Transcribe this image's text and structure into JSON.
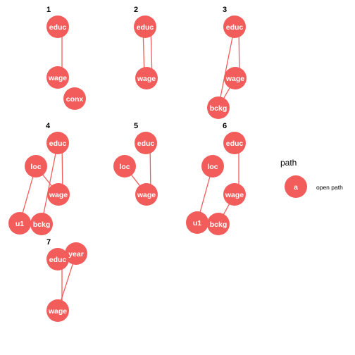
{
  "colors": {
    "node": "#f25d5b",
    "edge": "#f25d5b",
    "text": "#ffffff"
  },
  "panels": [
    {
      "label": "1",
      "nodes": [
        {
          "id": "educ",
          "label": "educ"
        },
        {
          "id": "wage",
          "label": "wage"
        },
        {
          "id": "conx",
          "label": "conx"
        }
      ],
      "edges": [
        {
          "from": "educ",
          "to": "wage",
          "directed": true
        }
      ]
    },
    {
      "label": "2",
      "nodes": [
        {
          "id": "educ",
          "label": "educ"
        },
        {
          "id": "wage",
          "label": "wage"
        }
      ],
      "edges": [
        {
          "from": "educ",
          "to": "wage",
          "directed": true
        },
        {
          "from": "educ",
          "to": "wage",
          "directed": true
        }
      ]
    },
    {
      "label": "3",
      "nodes": [
        {
          "id": "educ",
          "label": "educ"
        },
        {
          "id": "wage",
          "label": "wage"
        },
        {
          "id": "bckg",
          "label": "bckg"
        }
      ],
      "edges": [
        {
          "from": "bckg",
          "to": "educ",
          "directed": true
        },
        {
          "from": "educ",
          "to": "wage",
          "directed": true
        },
        {
          "from": "wage",
          "to": "bckg",
          "directed": true
        }
      ]
    },
    {
      "label": "4",
      "nodes": [
        {
          "id": "educ",
          "label": "educ"
        },
        {
          "id": "loc",
          "label": "loc"
        },
        {
          "id": "wage",
          "label": "wage"
        },
        {
          "id": "u1",
          "label": "u1"
        },
        {
          "id": "bckg",
          "label": "bckg"
        }
      ],
      "edges": [
        {
          "from": "u1",
          "to": "loc",
          "directed": true
        },
        {
          "from": "bckg",
          "to": "educ",
          "directed": true
        },
        {
          "from": "educ",
          "to": "wage",
          "directed": true
        },
        {
          "from": "wage",
          "to": "loc",
          "directed": true
        }
      ]
    },
    {
      "label": "5",
      "nodes": [
        {
          "id": "educ",
          "label": "educ"
        },
        {
          "id": "loc",
          "label": "loc"
        },
        {
          "id": "wage",
          "label": "wage"
        }
      ],
      "edges": [
        {
          "from": "educ",
          "to": "wage",
          "directed": true
        },
        {
          "from": "wage",
          "to": "loc",
          "directed": true
        }
      ]
    },
    {
      "label": "6",
      "nodes": [
        {
          "id": "educ",
          "label": "educ"
        },
        {
          "id": "loc",
          "label": "loc"
        },
        {
          "id": "wage",
          "label": "wage"
        },
        {
          "id": "u1",
          "label": "u1"
        },
        {
          "id": "bckg",
          "label": "bckg"
        }
      ],
      "edges": [
        {
          "from": "u1",
          "to": "loc",
          "directed": true
        },
        {
          "from": "educ",
          "to": "wage",
          "directed": true
        },
        {
          "from": "wage",
          "to": "bckg",
          "directed": true
        }
      ]
    },
    {
      "label": "7",
      "nodes": [
        {
          "id": "educ",
          "label": "educ"
        },
        {
          "id": "year",
          "label": "year"
        },
        {
          "id": "wage",
          "label": "wage"
        }
      ],
      "edges": [
        {
          "from": "educ",
          "to": "wage",
          "directed": true
        },
        {
          "from": "year",
          "to": "wage",
          "directed": true
        }
      ]
    }
  ],
  "legend": {
    "title": "path",
    "key_label": "a",
    "item_label": "open path"
  }
}
